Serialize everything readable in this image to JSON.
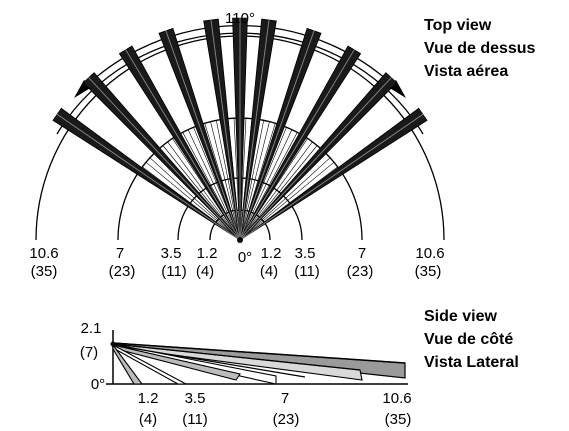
{
  "top_view": {
    "titles": [
      "Top view",
      "Vue de dessus",
      "Vista aérea"
    ],
    "angle_label": "110°",
    "origin_label": "0°",
    "range_labels": [
      {
        "m": "10.6",
        "ft": "(35)"
      },
      {
        "m": "7",
        "ft": "(23)"
      },
      {
        "m": "3.5",
        "ft": "(11)"
      },
      {
        "m": "1.2",
        "ft": "(4)"
      },
      {
        "m": "1.2",
        "ft": "(4)"
      },
      {
        "m": "3.5",
        "ft": "(11)"
      },
      {
        "m": "7",
        "ft": "(23)"
      },
      {
        "m": "10.6",
        "ft": "(35)"
      }
    ]
  },
  "side_view": {
    "titles": [
      "Side view",
      "Vue de côté",
      "Vista Lateral"
    ],
    "height_m": "2.1",
    "height_ft": "(7)",
    "origin_label": "0°",
    "range_labels": [
      {
        "m": "1.2",
        "ft": "(4)"
      },
      {
        "m": "3.5",
        "ft": "(11)"
      },
      {
        "m": "7",
        "ft": "(23)"
      },
      {
        "m": "10.6",
        "ft": "(35)"
      }
    ]
  }
}
